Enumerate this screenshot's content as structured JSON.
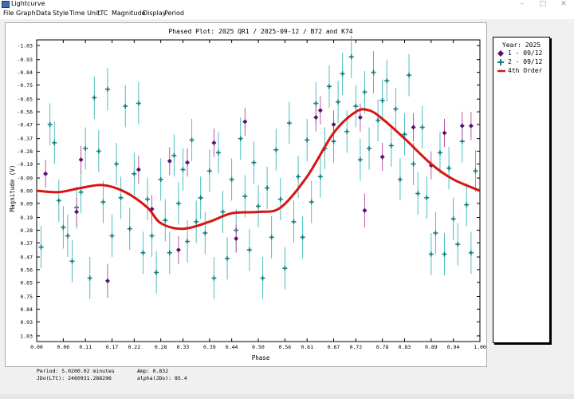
{
  "window": {
    "title": "Lightcurve",
    "minimize_glyph": "–",
    "maximize_glyph": "□",
    "close_glyph": "✕"
  },
  "menu": [
    "File",
    "Graph",
    "Data",
    "Style",
    "Time Unit",
    "LTC",
    "Magnitude",
    "Display",
    "Period"
  ],
  "legend": {
    "header": "Year: 2025",
    "items": [
      {
        "label": "1 - 09/12",
        "symbol": "diamond",
        "color": "#5a0f6e"
      },
      {
        "label": "2 - 09/12",
        "symbol": "plus",
        "color": "#0f7f7f"
      },
      {
        "label": "4th Order",
        "symbol": "line",
        "color": "#d81414"
      }
    ]
  },
  "footer": {
    "period": "Period: 5.0200.02 minutes",
    "amp": "Amp: 0.832",
    "jdo": "JDo(LTC): 2460931.288296",
    "alpha": "alpha(JDo): 85.4"
  },
  "chart_data": {
    "type": "scatter",
    "title": "Phased Plot: 2025 QR1  /  2025-09-12  /  B72 and K74",
    "xlabel": "Phase",
    "ylabel": "Magnitude (V)",
    "xlim": [
      0,
      1
    ],
    "ylim": [
      -1.07,
      1.07
    ],
    "y_inverted": true,
    "xticks": [
      "0.00",
      "0.06",
      "0.11",
      "0.17",
      "0.22",
      "0.28",
      "0.33",
      "0.39",
      "0.44",
      "0.50",
      "0.56",
      "0.61",
      "0.67",
      "0.72",
      "0.78",
      "0.83",
      "0.89",
      "0.94",
      "1.00"
    ],
    "yticks": [
      "-1.03",
      "-0.93",
      "-0.84",
      "-0.75",
      "-0.65",
      "-0.56",
      "-0.47",
      "-0.37",
      "-0.28",
      "-0.19",
      "-0.09",
      "0.00",
      "0.09",
      "0.19",
      "0.28",
      "0.37",
      "0.47",
      "0.56",
      "0.65",
      "0.75",
      "0.84",
      "0.93",
      "1.03"
    ],
    "colors": {
      "series1": "#5a0f6e",
      "series2": "#0f7f7f",
      "fit": "#d81414",
      "series1_bar": "#b8449c",
      "series2_bar": "#3ab7b7"
    },
    "series": [
      {
        "name": "1 - 09/12",
        "marker": "diamond",
        "points": [
          [
            0.02,
            -0.12,
            0.1
          ],
          [
            0.09,
            0.15,
            0.1
          ],
          [
            0.1,
            -0.22,
            0.1
          ],
          [
            0.16,
            0.64,
            0.12
          ],
          [
            0.23,
            -0.15,
            0.1
          ],
          [
            0.26,
            0.13,
            0.1
          ],
          [
            0.3,
            -0.21,
            0.1
          ],
          [
            0.32,
            0.42,
            0.1
          ],
          [
            0.34,
            -0.2,
            0.1
          ],
          [
            0.4,
            -0.34,
            0.1
          ],
          [
            0.45,
            0.34,
            0.1
          ],
          [
            0.47,
            -0.49,
            0.1
          ],
          [
            0.63,
            -0.52,
            0.1
          ],
          [
            0.64,
            -0.57,
            0.1
          ],
          [
            0.67,
            -0.47,
            0.1
          ],
          [
            0.73,
            -0.52,
            0.1
          ],
          [
            0.74,
            0.14,
            0.12
          ],
          [
            0.78,
            -0.24,
            0.1
          ],
          [
            0.85,
            -0.45,
            0.1
          ],
          [
            0.89,
            -0.18,
            0.1
          ],
          [
            0.92,
            -0.41,
            0.1
          ],
          [
            0.96,
            -0.46,
            0.1
          ],
          [
            0.98,
            -0.46,
            0.1
          ]
        ]
      },
      {
        "name": "2 - 09/12",
        "marker": "plus",
        "points": [
          [
            0.01,
            0.4,
            0.15
          ],
          [
            0.03,
            -0.47,
            0.15
          ],
          [
            0.04,
            -0.34,
            0.15
          ],
          [
            0.05,
            0.07,
            0.15
          ],
          [
            0.06,
            0.26,
            0.15
          ],
          [
            0.07,
            0.32,
            0.15
          ],
          [
            0.08,
            0.5,
            0.15
          ],
          [
            0.09,
            0.12,
            0.15
          ],
          [
            0.1,
            0.01,
            0.15
          ],
          [
            0.11,
            -0.3,
            0.15
          ],
          [
            0.12,
            0.62,
            0.15
          ],
          [
            0.13,
            -0.66,
            0.15
          ],
          [
            0.14,
            -0.28,
            0.15
          ],
          [
            0.15,
            0.08,
            0.15
          ],
          [
            0.16,
            -0.72,
            0.15
          ],
          [
            0.17,
            0.32,
            0.15
          ],
          [
            0.18,
            -0.19,
            0.15
          ],
          [
            0.19,
            0.05,
            0.15
          ],
          [
            0.2,
            -0.6,
            0.15
          ],
          [
            0.21,
            0.27,
            0.15
          ],
          [
            0.22,
            -0.12,
            0.15
          ],
          [
            0.23,
            -0.62,
            0.15
          ],
          [
            0.24,
            0.44,
            0.15
          ],
          [
            0.25,
            0.06,
            0.15
          ],
          [
            0.26,
            0.32,
            0.15
          ],
          [
            0.27,
            0.58,
            0.15
          ],
          [
            0.28,
            -0.08,
            0.15
          ],
          [
            0.29,
            0.21,
            0.15
          ],
          [
            0.3,
            0.44,
            0.15
          ],
          [
            0.31,
            -0.25,
            0.15
          ],
          [
            0.32,
            0.09,
            0.15
          ],
          [
            0.33,
            -0.15,
            0.15
          ],
          [
            0.34,
            0.36,
            0.15
          ],
          [
            0.35,
            -0.36,
            0.15
          ],
          [
            0.36,
            0.22,
            0.15
          ],
          [
            0.37,
            0.05,
            0.15
          ],
          [
            0.38,
            0.3,
            0.15
          ],
          [
            0.39,
            -0.14,
            0.15
          ],
          [
            0.4,
            0.62,
            0.15
          ],
          [
            0.41,
            -0.27,
            0.15
          ],
          [
            0.42,
            0.15,
            0.15
          ],
          [
            0.43,
            0.48,
            0.15
          ],
          [
            0.44,
            -0.08,
            0.15
          ],
          [
            0.45,
            0.28,
            0.15
          ],
          [
            0.46,
            -0.37,
            0.15
          ],
          [
            0.47,
            0.04,
            0.15
          ],
          [
            0.48,
            0.42,
            0.15
          ],
          [
            0.49,
            -0.2,
            0.15
          ],
          [
            0.5,
            0.11,
            0.15
          ],
          [
            0.51,
            0.62,
            0.15
          ],
          [
            0.52,
            -0.02,
            0.15
          ],
          [
            0.53,
            0.33,
            0.15
          ],
          [
            0.54,
            -0.29,
            0.15
          ],
          [
            0.55,
            0.06,
            0.15
          ],
          [
            0.56,
            0.55,
            0.15
          ],
          [
            0.57,
            -0.48,
            0.15
          ],
          [
            0.58,
            0.22,
            0.15
          ],
          [
            0.59,
            -0.1,
            0.15
          ],
          [
            0.6,
            0.33,
            0.15
          ],
          [
            0.61,
            -0.36,
            0.15
          ],
          [
            0.62,
            0.08,
            0.15
          ],
          [
            0.63,
            -0.62,
            0.15
          ],
          [
            0.64,
            -0.1,
            0.15
          ],
          [
            0.65,
            -0.3,
            0.15
          ],
          [
            0.66,
            -0.74,
            0.15
          ],
          [
            0.67,
            -0.35,
            0.15
          ],
          [
            0.68,
            -0.63,
            0.15
          ],
          [
            0.69,
            -0.83,
            0.15
          ],
          [
            0.7,
            -0.42,
            0.15
          ],
          [
            0.71,
            -0.95,
            0.15
          ],
          [
            0.72,
            -0.6,
            0.15
          ],
          [
            0.73,
            -0.22,
            0.15
          ],
          [
            0.74,
            -0.7,
            0.15
          ],
          [
            0.75,
            -0.3,
            0.15
          ],
          [
            0.76,
            -0.84,
            0.15
          ],
          [
            0.77,
            -0.5,
            0.15
          ],
          [
            0.78,
            -0.64,
            0.15
          ],
          [
            0.79,
            -0.78,
            0.15
          ],
          [
            0.8,
            -0.32,
            0.15
          ],
          [
            0.81,
            -0.58,
            0.15
          ],
          [
            0.82,
            -0.08,
            0.15
          ],
          [
            0.83,
            -0.4,
            0.15
          ],
          [
            0.84,
            -0.82,
            0.15
          ],
          [
            0.85,
            -0.19,
            0.15
          ],
          [
            0.86,
            0.02,
            0.15
          ],
          [
            0.87,
            -0.45,
            0.15
          ],
          [
            0.88,
            0.05,
            0.15
          ],
          [
            0.89,
            0.45,
            0.15
          ],
          [
            0.9,
            0.3,
            0.15
          ],
          [
            0.91,
            -0.27,
            0.15
          ],
          [
            0.92,
            0.45,
            0.15
          ],
          [
            0.93,
            -0.16,
            0.15
          ],
          [
            0.94,
            0.2,
            0.15
          ],
          [
            0.95,
            0.38,
            0.15
          ],
          [
            0.96,
            -0.35,
            0.15
          ],
          [
            0.97,
            0.1,
            0.15
          ],
          [
            0.98,
            0.44,
            0.15
          ],
          [
            0.99,
            -0.14,
            0.15
          ]
        ]
      }
    ],
    "fit": {
      "name": "4th Order",
      "x": [
        0.0,
        0.05,
        0.1,
        0.15,
        0.2,
        0.25,
        0.28,
        0.33,
        0.39,
        0.44,
        0.5,
        0.55,
        0.61,
        0.67,
        0.72,
        0.75,
        0.78,
        0.83,
        0.89,
        0.94,
        1.0
      ],
      "y": [
        0.0,
        0.01,
        -0.02,
        -0.04,
        0.01,
        0.12,
        0.23,
        0.27,
        0.22,
        0.16,
        0.15,
        0.12,
        -0.1,
        -0.41,
        -0.56,
        -0.57,
        -0.51,
        -0.37,
        -0.19,
        -0.08,
        0.0
      ]
    }
  }
}
